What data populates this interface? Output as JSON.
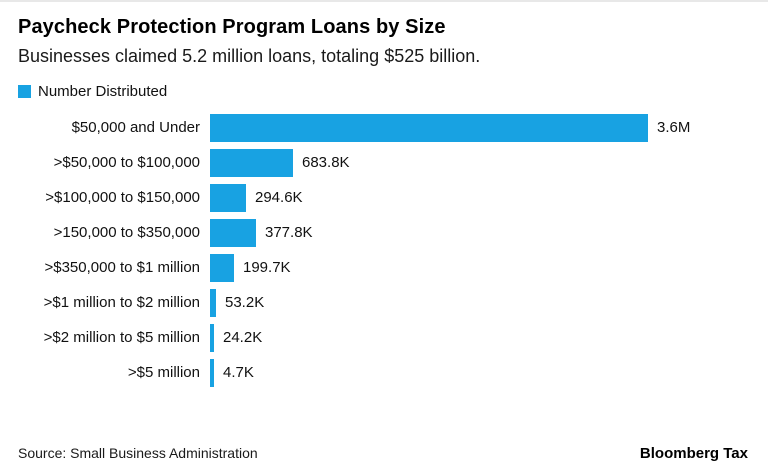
{
  "header": {
    "title": "Paycheck Protection Program Loans by Size",
    "subtitle": "Businesses claimed 5.2 million loans, totaling $525 billion."
  },
  "legend": {
    "label": "Number Distributed",
    "swatch_icon": "square-icon",
    "color": "#18a2e2"
  },
  "chart_data": {
    "type": "bar",
    "orientation": "horizontal",
    "title": "Paycheck Protection Program Loans by Size",
    "subtitle": "Businesses claimed 5.2 million loans, totaling $525 billion.",
    "series_name": "Number Distributed",
    "categories": [
      "$50,000 and Under",
      ">$50,000 to $100,000",
      ">$100,000 to $150,000",
      ">150,000 to $350,000",
      ">$350,000 to $1 million",
      ">$1 million to $2 million",
      ">$2 million to $5 million",
      ">$5 million"
    ],
    "values": [
      3600000,
      683800,
      294600,
      377800,
      199700,
      53200,
      24200,
      4700
    ],
    "value_labels": [
      "3.6M",
      "683.8K",
      "294.6K",
      "377.8K",
      "199.7K",
      "53.2K",
      "24.2K",
      "4.7K"
    ],
    "xlim": [
      0,
      3600000
    ],
    "bar_color": "#18a2e2",
    "grid": false,
    "legend_position": "top-left"
  },
  "footer": {
    "source": "Source: Small Business Administration",
    "brand": "Bloomberg Tax"
  }
}
